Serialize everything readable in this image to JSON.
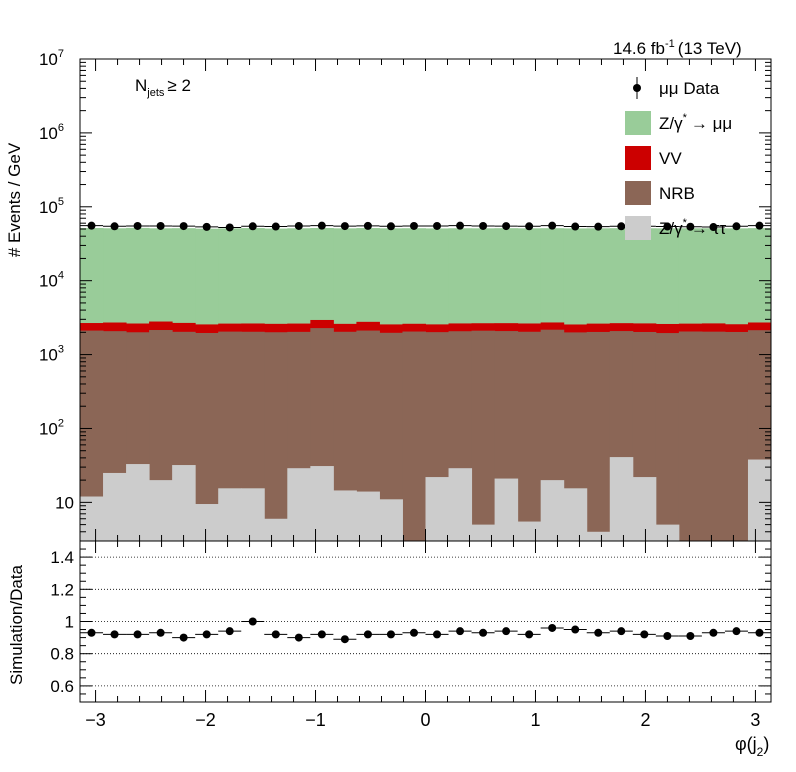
{
  "header": {
    "lumi": "14.6 fb",
    "lumi_exp": "-1",
    "energy": "(13 TeV)"
  },
  "selection": {
    "label": "N",
    "label_sub": "jets",
    "cut": "≥ 2"
  },
  "legend": [
    {
      "kind": "marker",
      "label": "μμ Data"
    },
    {
      "kind": "box",
      "color": "#99cc99",
      "label": "Z/γ",
      "sup": "*",
      "rest": "→ μμ"
    },
    {
      "kind": "box",
      "color": "#cc0000",
      "label": "VV"
    },
    {
      "kind": "box",
      "color": "#8b6656",
      "label": "NRB"
    },
    {
      "kind": "box",
      "color": "#cccccc",
      "label": "Z/γ",
      "sup": "*",
      "rest": "→ ττ"
    }
  ],
  "chart_data": [
    {
      "type": "area",
      "panel": "main",
      "ylabel": "# Events / GeV",
      "yscale": "log",
      "ylim": [
        3,
        10000000
      ],
      "xlim": [
        -3.14159,
        3.14159
      ],
      "y_ticks": [
        "10",
        "10^2",
        "10^3",
        "10^4",
        "10^5",
        "10^6",
        "10^7"
      ],
      "bins": 30,
      "stack_order": [
        "Z/γ* → ττ",
        "NRB",
        "VV",
        "Z/γ* → μμ"
      ],
      "series": [
        {
          "name": "Z/γ* → ττ",
          "color": "#cccccc",
          "values": [
            12,
            25,
            33,
            20,
            32,
            9.5,
            15.5,
            15.5,
            6,
            29,
            31,
            14.5,
            14,
            11,
            0,
            22,
            29,
            5,
            21,
            5.5,
            20,
            15.5,
            4,
            41,
            22,
            5,
            2.5,
            2.5,
            2.5,
            38
          ]
        },
        {
          "name": "NRB",
          "color": "#8b6656",
          "values": [
            2100,
            2050,
            1970,
            2130,
            2000,
            1950,
            2030,
            2020,
            2000,
            2000,
            2250,
            2020,
            2100,
            1960,
            2050,
            1990,
            2040,
            2100,
            2060,
            2030,
            2150,
            1980,
            2020,
            2040,
            2000,
            1950,
            2050,
            2040,
            2020,
            2100
          ]
        },
        {
          "name": "VV",
          "color": "#cc0000",
          "values": [
            560,
            640,
            630,
            650,
            650,
            600,
            580,
            600,
            600,
            600,
            660,
            570,
            660,
            590,
            560,
            550,
            570,
            550,
            580,
            600,
            550,
            560,
            600,
            580,
            620,
            640,
            570,
            600,
            550,
            580
          ]
        },
        {
          "name": "Z/γ* → μμ",
          "color": "#99cc99",
          "values": [
            49000,
            48500,
            49200,
            48400,
            48700,
            48000,
            48400,
            48900,
            48100,
            48600,
            48700,
            48500,
            48800,
            48600,
            48700,
            48400,
            48600,
            48500,
            48700,
            48500,
            48600,
            48400,
            48500,
            48700,
            48600,
            48500,
            48600,
            48600,
            48500,
            48700
          ]
        }
      ],
      "data": {
        "name": "μμ Data",
        "values": [
          55500,
          54500,
          55000,
          55000,
          54800,
          53500,
          52500,
          54500,
          54000,
          55000,
          55500,
          54800,
          55200,
          54500,
          55000,
          55000,
          55500,
          55000,
          54800,
          54500,
          55500,
          54000,
          53800,
          54500,
          54600,
          54000,
          53700,
          53200,
          54500,
          55500
        ]
      }
    },
    {
      "type": "scatter",
      "panel": "ratio",
      "xlabel": "φ(j",
      "xlabel_sub": "2",
      "xlabel_end": ")",
      "ylabel": "Simulation/Data",
      "ylim": [
        0.5,
        1.5
      ],
      "grid_y": [
        0.6,
        0.8,
        1.0,
        1.2,
        1.4
      ],
      "y_ticks": [
        "0.6",
        "0.8",
        "1",
        "1.2",
        "1.4"
      ],
      "x_ticks": [
        "−3",
        "−2",
        "−1",
        "0",
        "1",
        "2",
        "3"
      ],
      "x_tick_values": [
        -3,
        -2,
        -1,
        0,
        1,
        2,
        3
      ],
      "values": [
        0.93,
        0.92,
        0.92,
        0.93,
        0.9,
        0.92,
        0.94,
        1.0,
        0.92,
        0.9,
        0.92,
        0.89,
        0.92,
        0.92,
        0.93,
        0.92,
        0.94,
        0.93,
        0.94,
        0.92,
        0.96,
        0.95,
        0.93,
        0.94,
        0.92,
        0.91,
        0.91,
        0.93,
        0.94,
        0.93
      ]
    }
  ]
}
